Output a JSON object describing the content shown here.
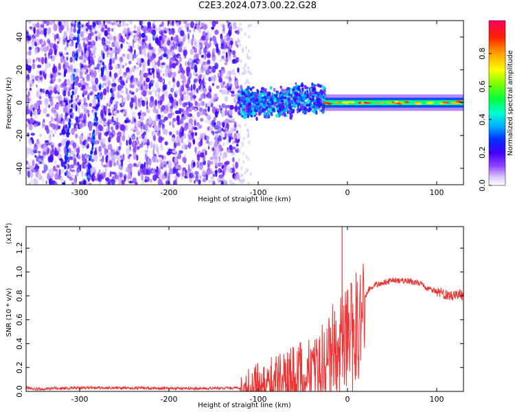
{
  "title": "C2E3.2024.073.00.22.G28",
  "chart_data": [
    {
      "type": "heatmap",
      "xlabel": "Height of straight line (km)",
      "ylabel": "Frequency (Hz)",
      "xlim": [
        -360,
        130
      ],
      "ylim": [
        -50,
        50
      ],
      "x_ticks": [
        -300,
        -200,
        -100,
        0,
        100
      ],
      "y_ticks": [
        -40,
        -20,
        0,
        20,
        40
      ],
      "colorbar": {
        "label": "Normalized spectral amplitude",
        "range": [
          0.0,
          1.0
        ],
        "ticks": [
          0.0,
          0.2,
          0.4,
          0.6,
          0.8
        ],
        "tick_labels": [
          "0.0",
          "0.2",
          "0.4",
          "0.6",
          "0.8"
        ],
        "colormap": [
          "#f4f0ff",
          "#b080ff",
          "#7a00ff",
          "#2020ff",
          "#00d8ff",
          "#00ff60",
          "#a0ff00",
          "#ffff00",
          "#ff8000",
          "#ff0040"
        ]
      },
      "regions": [
        {
          "x": [
            -360,
            -122
          ],
          "freq": [
            -50,
            50
          ],
          "amplitude": [
            0.0,
            0.15
          ],
          "description_level": "noise"
        },
        {
          "x": [
            -122,
            -25
          ],
          "freq": [
            -10,
            10
          ],
          "amplitude": [
            0.1,
            0.45
          ]
        },
        {
          "x": [
            -25,
            130
          ],
          "freq": [
            -3,
            3
          ],
          "amplitude": [
            0.3,
            0.9
          ]
        }
      ],
      "streaks": [
        {
          "x": [
            -318,
            -300
          ],
          "freq": [
            -50,
            50
          ]
        },
        {
          "x": [
            -292,
            -272
          ],
          "freq": [
            -50,
            30
          ]
        }
      ]
    },
    {
      "type": "line",
      "xlabel": "Height of straight line (km)",
      "ylabel": "SNR (10 * v/v)",
      "y_multiplier": "(x10",
      "y_multiplier_exp": "4",
      "y_multiplier_close": ")",
      "xlim": [
        -360,
        130
      ],
      "ylim": [
        0,
        1.38
      ],
      "x_ticks": [
        -300,
        -200,
        -100,
        0,
        100
      ],
      "y_ticks": [
        0.0,
        0.2,
        0.4,
        0.6,
        0.8,
        1.0,
        1.2
      ],
      "y_tick_labels": [
        "0.0",
        "0.2",
        "0.4",
        "0.6",
        "0.8",
        "1.0",
        "1.2"
      ],
      "color": "#ee3333",
      "series": [
        {
          "x": [
            -360,
            -350,
            -300,
            -250,
            -200,
            -150,
            -120,
            -110,
            -100,
            -90,
            -80,
            -70,
            -60,
            -50,
            -40,
            -30,
            -25,
            -20,
            -15,
            -12,
            -10,
            -8,
            -5,
            0,
            5,
            10,
            15,
            20,
            25,
            30,
            40,
            50,
            60,
            70,
            80,
            90,
            100,
            110,
            120,
            130
          ],
          "values": [
            0.03,
            0.02,
            0.03,
            0.03,
            0.025,
            0.025,
            0.03,
            0.06,
            0.1,
            0.12,
            0.15,
            0.18,
            0.2,
            0.22,
            0.28,
            0.38,
            0.3,
            0.45,
            0.5,
            0.42,
            0.55,
            0.6,
            0.6,
            0.68,
            0.65,
            0.78,
            0.82,
            0.8,
            0.86,
            0.89,
            0.91,
            0.93,
            0.93,
            0.92,
            0.91,
            0.86,
            0.84,
            0.82,
            0.81,
            0.81
          ]
        }
      ],
      "spike": {
        "x": -6,
        "value": 1.4
      }
    }
  ]
}
